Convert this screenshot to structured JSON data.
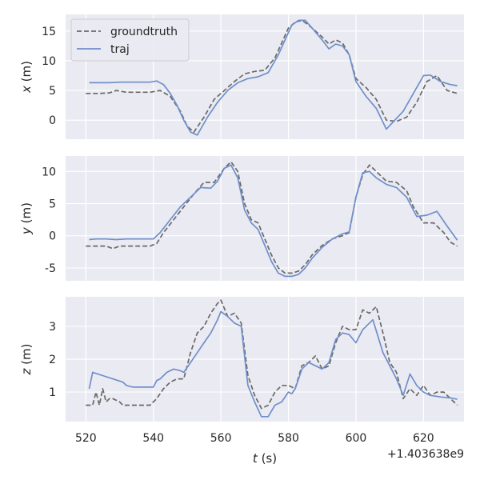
{
  "chart_data": {
    "type": "line",
    "xlabel_var": "t",
    "xlabel_unit": " (s)",
    "x_offset_label": "+1.403638e9",
    "xlim": [
      514,
      632
    ],
    "xticks": [
      520,
      540,
      560,
      580,
      600,
      620
    ],
    "grid": true,
    "legend": {
      "placement": "top-left",
      "entries": [
        "groundtruth",
        "traj"
      ]
    },
    "colors": {
      "groundtruth": "#696969",
      "traj": "#6f8fc9",
      "background": "#eaeaf2",
      "grid": "#ffffff"
    },
    "panels": [
      {
        "ylabel_var": "x",
        "ylabel_unit": " (m)",
        "ylim": [
          -3.2,
          17.8
        ],
        "yticks": [
          0,
          5,
          10,
          15
        ],
        "series": [
          {
            "name": "groundtruth",
            "style": "dashed",
            "x": [
              520,
              524,
              527,
              529,
              532,
              535,
              539,
              542,
              545,
              548,
              550,
              552,
              555,
              558,
              561,
              564,
              567,
              570,
              573,
              576,
              578,
              580,
              582,
              584,
              586,
              588,
              590,
              592,
              594,
              596,
              598,
              600,
              603,
              606,
              609,
              612,
              615,
              618,
              621,
              624,
              627,
              630
            ],
            "y": [
              4.5,
              4.5,
              4.6,
              5.0,
              4.7,
              4.7,
              4.7,
              5.0,
              4.0,
              1.5,
              -1.0,
              -2.0,
              0.5,
              3.5,
              5.0,
              6.5,
              7.8,
              8.2,
              8.4,
              10.5,
              13.0,
              15.5,
              16.5,
              16.8,
              16.0,
              15.0,
              14.0,
              12.8,
              13.5,
              13.0,
              11.0,
              7.0,
              5.5,
              3.5,
              0.0,
              -0.2,
              0.5,
              3.0,
              6.5,
              7.5,
              5.0,
              4.5
            ]
          },
          {
            "name": "traj",
            "style": "solid",
            "x": [
              521,
              524,
              527,
              530,
              533,
              536,
              539,
              541,
              543,
              545,
              547,
              549,
              551,
              553,
              556,
              559,
              562,
              565,
              568,
              571,
              574,
              577,
              579,
              581,
              583,
              585,
              587,
              590,
              592,
              594,
              596,
              598,
              600,
              603,
              606,
              609,
              611,
              614,
              617,
              620,
              622,
              625,
              628,
              630
            ],
            "y": [
              6.3,
              6.3,
              6.3,
              6.4,
              6.4,
              6.4,
              6.4,
              6.6,
              6.0,
              4.5,
              2.5,
              0.0,
              -2.0,
              -2.5,
              0.5,
              3.0,
              5.0,
              6.3,
              7.0,
              7.3,
              8.0,
              11.0,
              13.5,
              16.0,
              16.8,
              16.8,
              15.5,
              13.5,
              12.0,
              12.8,
              12.5,
              11.0,
              6.5,
              4.0,
              2.0,
              -1.5,
              -0.3,
              1.5,
              4.5,
              7.5,
              7.6,
              6.5,
              6.0,
              5.8
            ]
          }
        ]
      },
      {
        "ylabel_var": "y",
        "ylabel_unit": " (m)",
        "ylim": [
          -7.0,
          12.4
        ],
        "yticks": [
          -5,
          0,
          5,
          10
        ],
        "series": [
          {
            "name": "groundtruth",
            "style": "dashed",
            "x": [
              520,
              524,
              526,
              528,
              530,
              533,
              536,
              539,
              541,
              543,
              546,
              549,
              552,
              555,
              558,
              561,
              563,
              565,
              567,
              569,
              571,
              573,
              575,
              577,
              579,
              581,
              583,
              585,
              587,
              590,
              593,
              596,
              598,
              600,
              602,
              604,
              606,
              609,
              612,
              615,
              617,
              620,
              623,
              626,
              628,
              630
            ],
            "y": [
              -1.6,
              -1.6,
              -1.6,
              -2.0,
              -1.6,
              -1.6,
              -1.6,
              -1.6,
              -1.2,
              0.5,
              2.5,
              4.5,
              6.5,
              8.3,
              8.3,
              10.5,
              11.5,
              10.0,
              5.0,
              2.5,
              2.0,
              -0.5,
              -3.0,
              -5.0,
              -5.8,
              -5.8,
              -5.5,
              -4.5,
              -3.0,
              -1.5,
              -0.5,
              0.0,
              0.5,
              6.0,
              9.5,
              11.0,
              10.0,
              8.5,
              8.3,
              7.0,
              4.5,
              2.0,
              2.0,
              0.5,
              -1.0,
              -1.6
            ]
          },
          {
            "name": "traj",
            "style": "solid",
            "x": [
              521,
              523,
              526,
              529,
              532,
              535,
              538,
              540,
              542,
              545,
              548,
              551,
              554,
              557,
              559,
              561,
              563,
              565,
              567,
              569,
              571,
              573,
              575,
              577,
              579,
              581,
              583,
              585,
              587,
              590,
              593,
              596,
              598,
              600,
              602,
              604,
              606,
              609,
              612,
              615,
              618,
              621,
              624,
              627,
              630
            ],
            "y": [
              -0.6,
              -0.5,
              -0.5,
              -0.6,
              -0.5,
              -0.5,
              -0.5,
              -0.5,
              0.5,
              2.5,
              4.5,
              6.0,
              7.5,
              7.4,
              8.5,
              10.5,
              11.0,
              9.0,
              4.0,
              2.0,
              1.0,
              -1.5,
              -4.0,
              -5.8,
              -6.3,
              -6.3,
              -6.0,
              -5.0,
              -3.5,
              -1.8,
              -0.5,
              0.3,
              0.6,
              6.0,
              9.8,
              10.0,
              9.0,
              8.0,
              7.5,
              6.0,
              3.0,
              3.2,
              3.8,
              1.5,
              -0.7
            ]
          }
        ]
      },
      {
        "ylabel_var": "z",
        "ylabel_unit": " (m)",
        "ylim": [
          0.1,
          3.9
        ],
        "yticks": [
          1,
          2,
          3
        ],
        "series": [
          {
            "name": "groundtruth",
            "style": "dashed",
            "x": [
              520,
              522,
              523,
              524,
              525,
              526,
              527,
              528,
              530,
              531,
              534,
              537,
              539,
              541,
              543,
              545,
              547,
              549,
              551,
              553,
              555,
              557,
              559,
              560,
              562,
              564,
              566,
              568,
              570,
              572,
              574,
              576,
              578,
              580,
              582,
              584,
              586,
              588,
              590,
              592,
              594,
              596,
              598,
              600,
              602,
              604,
              606,
              608,
              610,
              612,
              614,
              616,
              618,
              620,
              622,
              624,
              626,
              628,
              630
            ],
            "y": [
              0.6,
              0.6,
              1.0,
              0.6,
              1.1,
              0.7,
              0.8,
              0.8,
              0.7,
              0.6,
              0.6,
              0.6,
              0.6,
              0.8,
              1.1,
              1.3,
              1.4,
              1.4,
              2.2,
              2.8,
              3.0,
              3.4,
              3.7,
              3.8,
              3.3,
              3.4,
              3.1,
              1.5,
              0.9,
              0.5,
              0.6,
              1.0,
              1.2,
              1.2,
              1.1,
              1.8,
              1.9,
              2.1,
              1.7,
              1.8,
              2.5,
              3.0,
              2.9,
              2.9,
              3.5,
              3.4,
              3.6,
              2.8,
              1.9,
              1.6,
              0.8,
              1.1,
              0.9,
              1.2,
              0.9,
              1.0,
              1.0,
              0.8,
              0.6
            ]
          },
          {
            "name": "traj",
            "style": "solid",
            "x": [
              521,
              522,
              525,
              528,
              531,
              532,
              534,
              537,
              540,
              541,
              542,
              544,
              546,
              548,
              549,
              551,
              553,
              555,
              557,
              559,
              560,
              562,
              564,
              566,
              568,
              570,
              572,
              574,
              576,
              578,
              580,
              581,
              582,
              584,
              586,
              588,
              590,
              592,
              594,
              596,
              598,
              600,
              602,
              605,
              608,
              610,
              612,
              614,
              616,
              618,
              620,
              622,
              625,
              628,
              630
            ],
            "y": [
              1.1,
              1.6,
              1.5,
              1.4,
              1.3,
              1.2,
              1.15,
              1.15,
              1.15,
              1.35,
              1.4,
              1.6,
              1.7,
              1.65,
              1.6,
              1.9,
              2.2,
              2.5,
              2.8,
              3.2,
              3.45,
              3.3,
              3.1,
              3.0,
              1.2,
              0.7,
              0.25,
              0.25,
              0.6,
              0.7,
              1.0,
              0.95,
              1.1,
              1.7,
              1.9,
              1.8,
              1.7,
              1.9,
              2.6,
              2.8,
              2.75,
              2.5,
              2.9,
              3.2,
              2.2,
              1.8,
              1.4,
              0.9,
              1.55,
              1.2,
              1.0,
              0.9,
              0.85,
              0.82,
              0.78
            ]
          }
        ]
      }
    ]
  }
}
